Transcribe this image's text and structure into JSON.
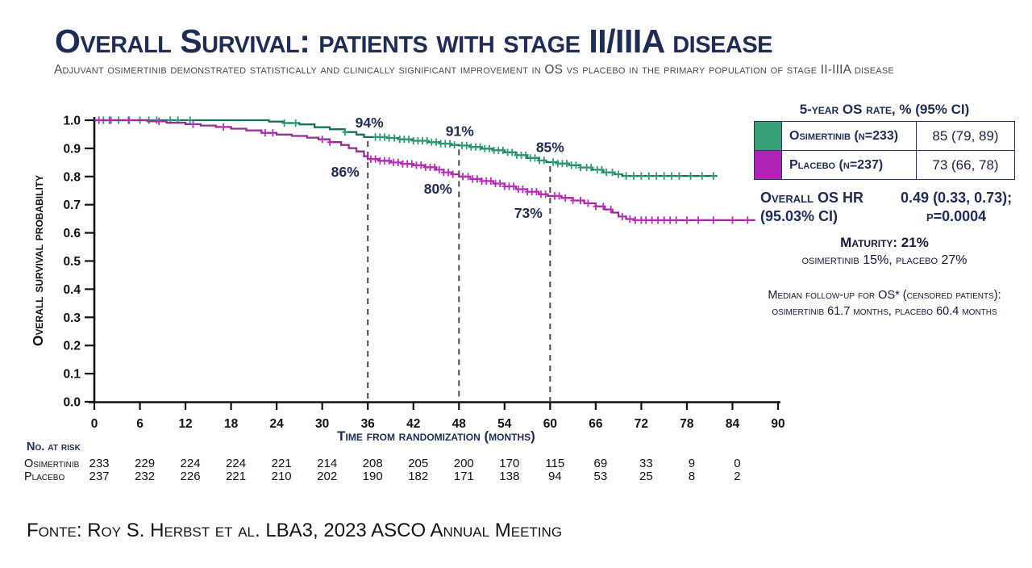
{
  "header": {
    "title": "Overall Survival: patients with stage II/IIIA disease",
    "subtitle": "Adjuvant osimertinib demonstrated statistically and clinically significant improvement in OS vs placebo in the primary population of stage II-IIIA disease"
  },
  "colors": {
    "navy": "#1F2C56",
    "axis_black": "#111111",
    "dash_gray": "#4B4B4B",
    "osimertinib_line": "#17735D",
    "osimertinib_censor": "#2D9C72",
    "osimertinib_swatch": "#38A077",
    "placebo_line": "#952D93",
    "placebo_censor": "#BE2BBE",
    "placebo_swatch": "#AE23B4"
  },
  "chart_data": {
    "type": "line",
    "subtype": "kaplan-meier-step",
    "xlabel": "Time from randomization (months)",
    "ylabel": "Overall survival probability",
    "xlim": [
      0,
      90
    ],
    "ylim": [
      0.0,
      1.0
    ],
    "xticks": [
      0,
      6,
      12,
      18,
      24,
      30,
      36,
      42,
      48,
      54,
      60,
      66,
      72,
      78,
      84,
      90
    ],
    "yticks": [
      0.0,
      0.1,
      0.2,
      0.3,
      0.4,
      0.5,
      0.6,
      0.7,
      0.8,
      0.9,
      1.0
    ],
    "grid": false,
    "dashed_reference_x": [
      36,
      48,
      60
    ],
    "series": [
      {
        "name": "Osimertinib",
        "color_key": "osimertinib_line",
        "censor_color_key": "osimertinib_censor",
        "end_month": 82,
        "steps": [
          [
            0,
            1.0
          ],
          [
            23,
            0.995
          ],
          [
            25,
            0.99
          ],
          [
            27,
            0.985
          ],
          [
            29,
            0.975
          ],
          [
            31,
            0.968
          ],
          [
            33,
            0.958
          ],
          [
            34.5,
            0.949
          ],
          [
            35.5,
            0.94
          ],
          [
            38.5,
            0.937
          ],
          [
            40,
            0.932
          ],
          [
            42,
            0.927
          ],
          [
            44,
            0.922
          ],
          [
            45.5,
            0.917
          ],
          [
            47,
            0.912
          ],
          [
            48,
            0.91
          ],
          [
            49.5,
            0.905
          ],
          [
            51,
            0.899
          ],
          [
            52.5,
            0.893
          ],
          [
            54,
            0.886
          ],
          [
            55.5,
            0.876
          ],
          [
            57,
            0.866
          ],
          [
            58.5,
            0.857
          ],
          [
            59.5,
            0.851
          ],
          [
            61,
            0.846
          ],
          [
            62.5,
            0.84
          ],
          [
            64,
            0.832
          ],
          [
            65.5,
            0.824
          ],
          [
            67,
            0.815
          ],
          [
            68.5,
            0.808
          ],
          [
            69.5,
            0.802
          ]
        ],
        "censor_months": [
          1.2,
          2.2,
          3.2,
          4.6,
          6,
          7.2,
          8.2,
          10,
          11,
          12.6,
          25,
          26.5,
          33,
          37,
          37.6,
          38.2,
          38.8,
          39.5,
          40.2,
          40.8,
          41.4,
          42,
          42.6,
          43.2,
          43.8,
          44.4,
          45,
          45.6,
          46.2,
          46.8,
          47.4,
          48.4,
          49,
          49.6,
          50.2,
          50.8,
          51.4,
          52,
          52.6,
          53.2,
          53.8,
          54.4,
          55,
          55.6,
          56.2,
          56.8,
          57.4,
          58,
          58.6,
          59.2,
          60.4,
          61,
          61.6,
          62.2,
          62.8,
          63.4,
          64,
          64.8,
          65.4,
          66.2,
          66.8,
          67.4,
          68.2,
          69,
          70,
          71,
          72,
          73,
          74,
          75,
          76,
          77,
          78.5,
          80,
          81.5
        ],
        "annotations": [
          {
            "text": "94%",
            "month": 36,
            "prob": 0.94,
            "dx": 2,
            "dy": -12
          },
          {
            "text": "91%",
            "month": 48,
            "prob": 0.91,
            "dx": 1,
            "dy": -12
          },
          {
            "text": "85%",
            "month": 60,
            "prob": 0.85,
            "dx": 0,
            "dy": -13
          }
        ]
      },
      {
        "name": "Placebo",
        "color_key": "placebo_line",
        "censor_color_key": "placebo_censor",
        "end_month": 87,
        "steps": [
          [
            0,
            1.0
          ],
          [
            7,
            0.996
          ],
          [
            9.5,
            0.991
          ],
          [
            12,
            0.986
          ],
          [
            14,
            0.981
          ],
          [
            16,
            0.976
          ],
          [
            18,
            0.97
          ],
          [
            20,
            0.964
          ],
          [
            22,
            0.955
          ],
          [
            24,
            0.949
          ],
          [
            26,
            0.944
          ],
          [
            28,
            0.938
          ],
          [
            29.5,
            0.932
          ],
          [
            31,
            0.922
          ],
          [
            32.5,
            0.912
          ],
          [
            33.5,
            0.901
          ],
          [
            34.5,
            0.889
          ],
          [
            35.5,
            0.872
          ],
          [
            36,
            0.862
          ],
          [
            37.5,
            0.856
          ],
          [
            39,
            0.85
          ],
          [
            40.5,
            0.845
          ],
          [
            42,
            0.84
          ],
          [
            43.5,
            0.833
          ],
          [
            45,
            0.824
          ],
          [
            46,
            0.815
          ],
          [
            47,
            0.808
          ],
          [
            48,
            0.8
          ],
          [
            49.5,
            0.791
          ],
          [
            51,
            0.784
          ],
          [
            52.5,
            0.775
          ],
          [
            54,
            0.765
          ],
          [
            55.5,
            0.755
          ],
          [
            57,
            0.746
          ],
          [
            58.5,
            0.737
          ],
          [
            59.7,
            0.731
          ],
          [
            61.5,
            0.724
          ],
          [
            63,
            0.715
          ],
          [
            64.5,
            0.705
          ],
          [
            66,
            0.694
          ],
          [
            67.2,
            0.683
          ],
          [
            68.2,
            0.672
          ],
          [
            69,
            0.658
          ],
          [
            70,
            0.649
          ],
          [
            71,
            0.645
          ]
        ],
        "censor_months": [
          0.6,
          2,
          4.5,
          8.5,
          13,
          17,
          22.5,
          23.5,
          30,
          31,
          36.4,
          37,
          37.6,
          38.2,
          38.8,
          39.4,
          40,
          40.6,
          41.2,
          41.8,
          42.4,
          43,
          43.6,
          44.2,
          44.8,
          45.4,
          46,
          46.6,
          47.2,
          48.5,
          49.2,
          49.8,
          50.4,
          51,
          51.6,
          52.2,
          52.8,
          53.4,
          54,
          54.6,
          55.2,
          55.8,
          56.4,
          57,
          57.6,
          58.2,
          58.8,
          59.4,
          60.6,
          61.2,
          62,
          63,
          64,
          65,
          66,
          67,
          68,
          69.5,
          70.5,
          71.2,
          72,
          72.6,
          73.4,
          74.2,
          75,
          75.8,
          76.6,
          78,
          79.5,
          81.5,
          84,
          86
        ],
        "annotations": [
          {
            "text": "86%",
            "month": 36,
            "prob": 0.86,
            "dx": -28,
            "dy": 21
          },
          {
            "text": "80%",
            "month": 48,
            "prob": 0.8,
            "dx": -26,
            "dy": 21
          },
          {
            "text": "73%",
            "month": 60,
            "prob": 0.73,
            "dx": -27,
            "dy": 27
          }
        ]
      }
    ]
  },
  "legend": {
    "header": "5-year OS rate, % (95% CI)",
    "rows": [
      {
        "label": "Osimertinib (n=233)",
        "value": "85 (79, 89)",
        "swatch_color": "#38A077"
      },
      {
        "label": "Placebo (n=237)",
        "value": "73 (66, 78)",
        "swatch_color": "#AE23B4"
      }
    ]
  },
  "stats": {
    "hr_label1": "Overall OS HR",
    "hr_label2": "(95.03% CI)",
    "hr_value1": "0.49 (0.33, 0.73);",
    "hr_value2": "p=0.0004",
    "maturity_line1": "Maturity: 21%",
    "maturity_line2": "osimertinib 15%, placebo 27%",
    "followup_line1": "Median follow-up for OS* (censored patients):",
    "followup_line2": "osimertinib 61.7 months, placebo 60.4 months"
  },
  "at_risk": {
    "title": "No. at risk",
    "months": [
      0,
      6,
      12,
      18,
      24,
      30,
      36,
      42,
      48,
      54,
      60,
      66,
      72,
      78,
      84
    ],
    "rows": [
      {
        "label": "Osimertinib",
        "values": [
          233,
          229,
          224,
          224,
          221,
          214,
          208,
          205,
          200,
          170,
          115,
          69,
          33,
          9,
          0
        ]
      },
      {
        "label": "Placebo",
        "values": [
          237,
          232,
          226,
          221,
          210,
          202,
          190,
          182,
          171,
          138,
          94,
          53,
          25,
          8,
          2
        ]
      }
    ]
  },
  "footer": {
    "source": "Fonte: Roy S. Herbst et al. LBA3, 2023 ASCO Annual Meeting"
  }
}
